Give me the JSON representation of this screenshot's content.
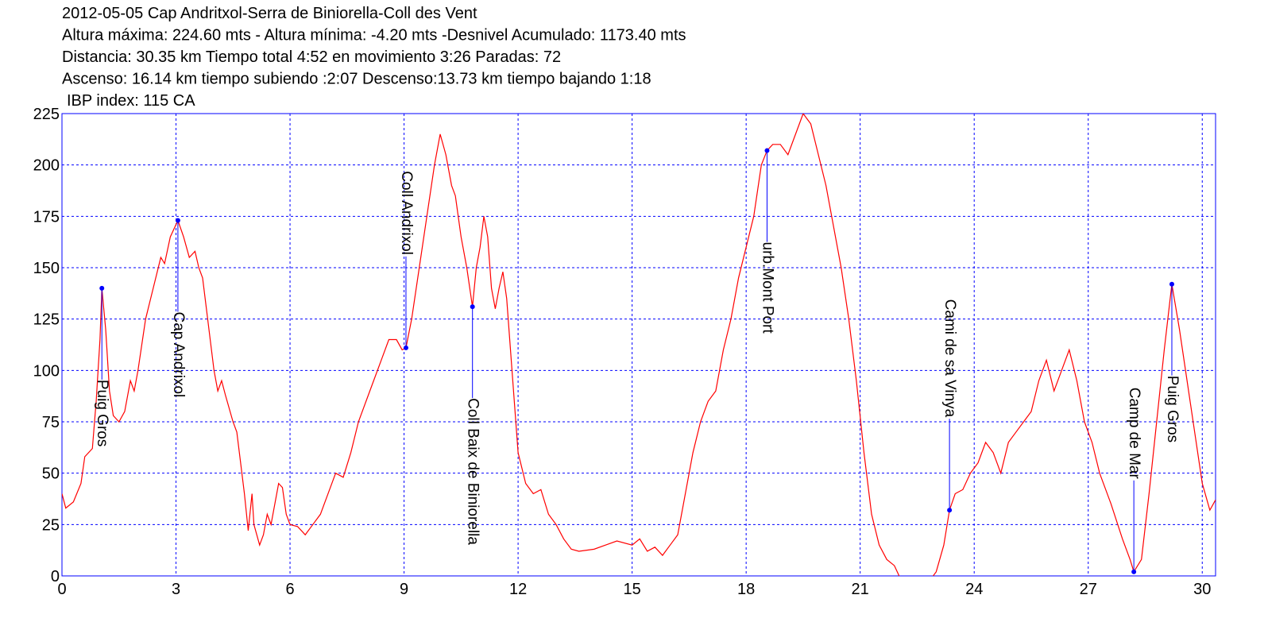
{
  "chart_data": {
    "type": "line",
    "title_lines": [
      "2012-05-05 Cap Andritxol-Serra de Biniorella-Coll des Vent",
      "Altura máxima: 224.60 mts - Altura mínima: -4.20 mts -Desnivel Acumulado: 1173.40 mts",
      "Distancia: 30.35 km  Tiempo total 4:52  en movimiento 3:26 Paradas: 72",
      "Ascenso: 16.14 km  tiempo subiendo :2:07  Descenso:13.73 km tiempo bajando 1:18",
      "IBP index: 115 CA"
    ],
    "x": [
      0,
      0.1,
      0.3,
      0.5,
      0.6,
      0.8,
      0.9,
      1.0,
      1.05,
      1.15,
      1.25,
      1.35,
      1.5,
      1.65,
      1.8,
      1.9,
      2.0,
      2.2,
      2.4,
      2.6,
      2.7,
      2.85,
      3.05,
      3.2,
      3.35,
      3.5,
      3.6,
      3.7,
      3.8,
      3.9,
      4.0,
      4.1,
      4.2,
      4.3,
      4.5,
      4.6,
      4.7,
      4.8,
      4.9,
      5.0,
      5.05,
      5.2,
      5.3,
      5.4,
      5.5,
      5.6,
      5.7,
      5.8,
      5.9,
      6.0,
      6.2,
      6.4,
      6.6,
      6.8,
      7.0,
      7.2,
      7.4,
      7.6,
      7.8,
      8.0,
      8.2,
      8.4,
      8.6,
      8.8,
      8.95,
      9.05,
      9.2,
      9.4,
      9.6,
      9.8,
      9.95,
      10.1,
      10.25,
      10.35,
      10.5,
      10.65,
      10.8,
      10.9,
      11.0,
      11.1,
      11.2,
      11.3,
      11.4,
      11.5,
      11.6,
      11.7,
      11.8,
      11.9,
      12.0,
      12.2,
      12.4,
      12.6,
      12.8,
      13.0,
      13.2,
      13.4,
      13.6,
      14.0,
      14.3,
      14.6,
      15.0,
      15.2,
      15.4,
      15.6,
      15.8,
      16.0,
      16.2,
      16.4,
      16.6,
      16.8,
      17.0,
      17.2,
      17.4,
      17.6,
      17.8,
      18.0,
      18.2,
      18.4,
      18.55,
      18.7,
      18.9,
      19.1,
      19.3,
      19.5,
      19.7,
      19.9,
      20.1,
      20.3,
      20.5,
      20.7,
      20.9,
      21.1,
      21.3,
      21.5,
      21.7,
      21.9,
      22.1,
      22.4,
      22.8,
      23.0,
      23.2,
      23.35,
      23.5,
      23.7,
      23.9,
      24.1,
      24.3,
      24.5,
      24.7,
      24.9,
      25.1,
      25.3,
      25.5,
      25.7,
      25.9,
      26.1,
      26.3,
      26.5,
      26.7,
      26.9,
      27.1,
      27.3,
      27.6,
      27.9,
      28.1,
      28.2,
      28.4,
      28.6,
      28.8,
      29.0,
      29.2,
      29.4,
      29.6,
      29.8,
      30.0,
      30.2,
      30.35
    ],
    "series": [
      {
        "color": "#ff0000",
        "values": [
          40,
          33,
          36,
          45,
          58,
          62,
          85,
          115,
          140,
          120,
          90,
          78,
          75,
          80,
          95,
          90,
          100,
          125,
          140,
          155,
          152,
          165,
          173,
          165,
          155,
          158,
          150,
          145,
          130,
          115,
          100,
          90,
          95,
          88,
          75,
          70,
          55,
          40,
          22,
          40,
          25,
          15,
          20,
          30,
          25,
          35,
          45,
          43,
          30,
          25,
          24,
          20,
          25,
          30,
          40,
          50,
          48,
          60,
          75,
          85,
          95,
          105,
          115,
          115,
          110,
          111,
          125,
          150,
          175,
          200,
          215,
          205,
          190,
          185,
          165,
          150,
          131,
          150,
          160,
          175,
          165,
          140,
          130,
          140,
          148,
          135,
          110,
          85,
          60,
          45,
          40,
          42,
          30,
          25,
          18,
          13,
          12,
          13,
          15,
          17,
          15,
          18,
          12,
          14,
          10,
          15,
          20,
          40,
          60,
          75,
          85,
          90,
          110,
          125,
          145,
          160,
          175,
          200,
          207,
          210,
          210,
          205,
          215,
          225,
          220,
          205,
          190,
          170,
          150,
          125,
          95,
          60,
          30,
          15,
          8,
          5,
          -3,
          -4,
          -3,
          2,
          15,
          32,
          40,
          42,
          50,
          55,
          65,
          60,
          50,
          65,
          70,
          75,
          80,
          95,
          105,
          90,
          100,
          110,
          95,
          75,
          65,
          50,
          35,
          18,
          8,
          2,
          8,
          40,
          75,
          110,
          142,
          120,
          95,
          70,
          45,
          32,
          37
        ]
      }
    ],
    "xlim": [
      0,
      30.35
    ],
    "ylim": [
      0,
      225
    ],
    "xticks": [
      0,
      3,
      6,
      9,
      12,
      15,
      18,
      21,
      24,
      27,
      30
    ],
    "yticks": [
      0,
      25,
      50,
      75,
      100,
      125,
      150,
      175,
      200,
      225
    ],
    "grid": true,
    "grid_color": "#0000ff",
    "marker_color": "#0000ff",
    "annotations": [
      {
        "text": "Puig Gros",
        "x": 1.05,
        "y": 140,
        "label_position": "below"
      },
      {
        "text": "Cap Andrixol",
        "x": 3.05,
        "y": 173,
        "label_position": "below"
      },
      {
        "text": "Coll Andrixol",
        "x": 9.05,
        "y": 111,
        "label_position": "above"
      },
      {
        "text": "Coll Baix de Biniorella",
        "x": 10.8,
        "y": 131,
        "label_position": "below"
      },
      {
        "text": "urb.Mont Port",
        "x": 18.55,
        "y": 207,
        "label_position": "below"
      },
      {
        "text": "Cami de sa Vinya",
        "x": 23.35,
        "y": 32,
        "label_position": "above"
      },
      {
        "text": "Camp de Mar",
        "x": 28.2,
        "y": 2,
        "label_position": "above"
      },
      {
        "text": "Puig Gros",
        "x": 29.2,
        "y": 142,
        "label_position": "below"
      }
    ]
  }
}
